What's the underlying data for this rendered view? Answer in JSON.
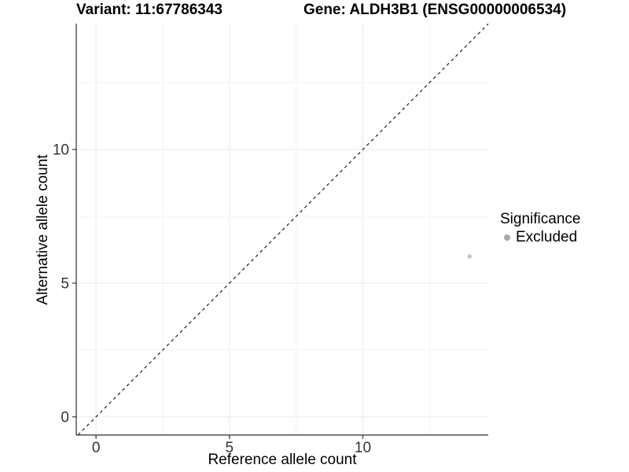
{
  "chart_data": {
    "type": "scatter",
    "titles": {
      "left": "Variant: 11:67786343",
      "right": "Gene: ALDH3B1 (ENSG00000006534)"
    },
    "xlabel": "Reference allele count",
    "ylabel": "Alternative allele count",
    "xlim": [
      -0.74,
      14.7
    ],
    "ylim": [
      -0.68,
      14.71
    ],
    "x_ticks": [
      0,
      5,
      10
    ],
    "y_ticks": [
      0,
      5,
      10
    ],
    "x_minor_ticks": [
      2.5,
      7.5,
      12.5
    ],
    "y_minor_ticks": [
      2.5,
      7.5,
      12.5
    ],
    "grid": "major+minor",
    "aspect": "equal",
    "identity_line": {
      "slope": 1,
      "intercept": 0,
      "style": "dashed",
      "color": "#1c1c1c"
    },
    "series": [
      {
        "name": "Excluded",
        "color": "#c0c0c0",
        "marker": "circle",
        "points": [
          {
            "x": 14,
            "y": 6
          }
        ]
      }
    ],
    "legend": {
      "title": "Significance",
      "position": "right",
      "items": [
        {
          "label": "Excluded",
          "swatch_color": "#a8a8a8",
          "marker": "circle"
        }
      ]
    },
    "colors": {
      "axis_line": "#2e2e2e",
      "tick_label": "#333333",
      "grid_major": "#e9e9e9",
      "grid_minor": "#f4f4f4",
      "background": "#ffffff"
    }
  }
}
